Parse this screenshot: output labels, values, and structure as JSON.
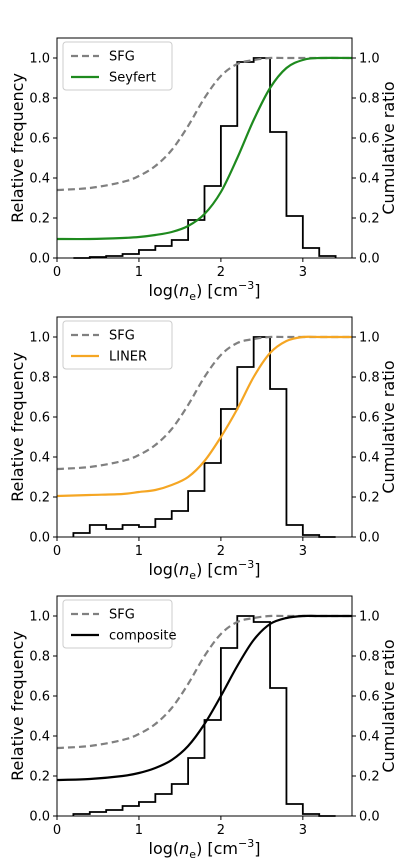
{
  "chart_data": [
    {
      "type": "line",
      "panel": "top",
      "xlabel_parts": [
        "log(",
        "n",
        "e",
        ") [cm",
        "−3",
        "]"
      ],
      "ylabel_left": "Relative frequency",
      "ylabel_right": "Cumulative ratio",
      "xlim": [
        0,
        3.6
      ],
      "ylim_left": [
        0,
        1.1
      ],
      "ylim_right": [
        0,
        1.1
      ],
      "x_ticks": [
        "0",
        "1",
        "2",
        "3"
      ],
      "y_ticks_left": [
        "0.0",
        "0.2",
        "0.4",
        "0.6",
        "0.8",
        "1.0"
      ],
      "y_ticks_right": [
        "0.0",
        "0.2",
        "0.4",
        "0.6",
        "0.8",
        "1.0"
      ],
      "grid": false,
      "legend_position": "top-left",
      "histogram": {
        "color": "#000000",
        "bin_edges": [
          0.2,
          0.4,
          0.6,
          0.8,
          1.0,
          1.2,
          1.4,
          1.6,
          1.8,
          2.0,
          2.2,
          2.4,
          2.6,
          2.8,
          3.0,
          3.2,
          3.4
        ],
        "values": [
          0.0,
          0.005,
          0.01,
          0.02,
          0.04,
          0.06,
          0.09,
          0.19,
          0.36,
          0.66,
          0.98,
          1.0,
          0.63,
          0.21,
          0.05,
          0.01
        ]
      },
      "series": [
        {
          "name": "SFG",
          "style": "dashed",
          "color": "#808080",
          "x": [
            0,
            0.4,
            0.8,
            1.0,
            1.2,
            1.4,
            1.6,
            1.8,
            2.0,
            2.2,
            2.4,
            2.6,
            2.8,
            3.0,
            3.2,
            3.6
          ],
          "y": [
            0.34,
            0.35,
            0.38,
            0.41,
            0.46,
            0.54,
            0.66,
            0.8,
            0.91,
            0.97,
            0.99,
            1.0,
            1.0,
            1.0,
            1.0,
            1.0
          ]
        },
        {
          "name": "Seyfert",
          "style": "solid",
          "color": "#1e8a1e",
          "x": [
            0,
            0.4,
            0.8,
            1.0,
            1.2,
            1.4,
            1.6,
            1.8,
            2.0,
            2.2,
            2.4,
            2.6,
            2.8,
            3.0,
            3.2,
            3.6
          ],
          "y": [
            0.095,
            0.095,
            0.1,
            0.105,
            0.115,
            0.13,
            0.16,
            0.22,
            0.33,
            0.5,
            0.69,
            0.85,
            0.95,
            0.99,
            1.0,
            1.0
          ]
        }
      ]
    },
    {
      "type": "line",
      "panel": "middle",
      "xlabel_parts": [
        "log(",
        "n",
        "e",
        ") [cm",
        "−3",
        "]"
      ],
      "ylabel_left": "Relative frequency",
      "ylabel_right": "Cumulative ratio",
      "xlim": [
        0,
        3.6
      ],
      "ylim_left": [
        0,
        1.1
      ],
      "ylim_right": [
        0,
        1.1
      ],
      "x_ticks": [
        "0",
        "1",
        "2",
        "3"
      ],
      "y_ticks_left": [
        "0.0",
        "0.2",
        "0.4",
        "0.6",
        "0.8",
        "1.0"
      ],
      "y_ticks_right": [
        "0.0",
        "0.2",
        "0.4",
        "0.6",
        "0.8",
        "1.0"
      ],
      "grid": false,
      "legend_position": "top-left",
      "histogram": {
        "color": "#000000",
        "bin_edges": [
          0.2,
          0.4,
          0.6,
          0.8,
          1.0,
          1.2,
          1.4,
          1.6,
          1.8,
          2.0,
          2.2,
          2.4,
          2.6,
          2.8,
          3.0,
          3.2,
          3.4
        ],
        "values": [
          0.02,
          0.06,
          0.04,
          0.06,
          0.05,
          0.09,
          0.13,
          0.23,
          0.37,
          0.64,
          0.85,
          1.0,
          0.74,
          0.06,
          0.01,
          0.0
        ]
      },
      "series": [
        {
          "name": "SFG",
          "style": "dashed",
          "color": "#808080",
          "x": [
            0,
            0.4,
            0.8,
            1.0,
            1.2,
            1.4,
            1.6,
            1.8,
            2.0,
            2.2,
            2.4,
            2.6,
            2.8,
            3.0,
            3.2,
            3.6
          ],
          "y": [
            0.34,
            0.35,
            0.38,
            0.41,
            0.46,
            0.54,
            0.66,
            0.8,
            0.91,
            0.97,
            0.99,
            1.0,
            1.0,
            1.0,
            1.0,
            1.0
          ]
        },
        {
          "name": "LINER",
          "style": "solid",
          "color": "#f5a623",
          "x": [
            0,
            0.4,
            0.8,
            1.0,
            1.2,
            1.4,
            1.6,
            1.8,
            2.0,
            2.2,
            2.4,
            2.6,
            2.8,
            3.0,
            3.2,
            3.6
          ],
          "y": [
            0.205,
            0.21,
            0.215,
            0.225,
            0.235,
            0.26,
            0.3,
            0.38,
            0.5,
            0.64,
            0.8,
            0.92,
            0.98,
            1.0,
            1.0,
            1.0
          ]
        }
      ]
    },
    {
      "type": "line",
      "panel": "bottom",
      "xlabel_parts": [
        "log(",
        "n",
        "e",
        ") [cm",
        "−3",
        "]"
      ],
      "ylabel_left": "Relative frequency",
      "ylabel_right": "Cumulative ratio",
      "xlim": [
        0,
        3.6
      ],
      "ylim_left": [
        0,
        1.1
      ],
      "ylim_right": [
        0,
        1.1
      ],
      "x_ticks": [
        "0",
        "1",
        "2",
        "3"
      ],
      "y_ticks_left": [
        "0.0",
        "0.2",
        "0.4",
        "0.6",
        "0.8",
        "1.0"
      ],
      "y_ticks_right": [
        "0.0",
        "0.2",
        "0.4",
        "0.6",
        "0.8",
        "1.0"
      ],
      "grid": false,
      "legend_position": "top-left",
      "histogram": {
        "color": "#000000",
        "bin_edges": [
          0.2,
          0.4,
          0.6,
          0.8,
          1.0,
          1.2,
          1.4,
          1.6,
          1.8,
          2.0,
          2.2,
          2.4,
          2.6,
          2.8,
          3.0,
          3.2,
          3.4
        ],
        "values": [
          0.01,
          0.02,
          0.03,
          0.05,
          0.07,
          0.11,
          0.16,
          0.29,
          0.48,
          0.84,
          1.0,
          0.97,
          0.64,
          0.06,
          0.01,
          0.0
        ]
      },
      "series": [
        {
          "name": "SFG",
          "style": "dashed",
          "color": "#808080",
          "x": [
            0,
            0.4,
            0.8,
            1.0,
            1.2,
            1.4,
            1.6,
            1.8,
            2.0,
            2.2,
            2.4,
            2.6,
            2.8,
            3.0,
            3.2,
            3.6
          ],
          "y": [
            0.34,
            0.35,
            0.38,
            0.41,
            0.46,
            0.54,
            0.66,
            0.8,
            0.91,
            0.97,
            0.99,
            1.0,
            1.0,
            1.0,
            1.0,
            1.0
          ]
        },
        {
          "name": "composite",
          "style": "solid",
          "color": "#000000",
          "x": [
            0,
            0.4,
            0.8,
            1.0,
            1.2,
            1.4,
            1.6,
            1.8,
            2.0,
            2.2,
            2.4,
            2.6,
            2.8,
            3.0,
            3.2,
            3.6
          ],
          "y": [
            0.18,
            0.185,
            0.2,
            0.215,
            0.24,
            0.28,
            0.35,
            0.46,
            0.6,
            0.75,
            0.88,
            0.96,
            0.99,
            1.0,
            1.0,
            1.0
          ]
        }
      ]
    }
  ]
}
